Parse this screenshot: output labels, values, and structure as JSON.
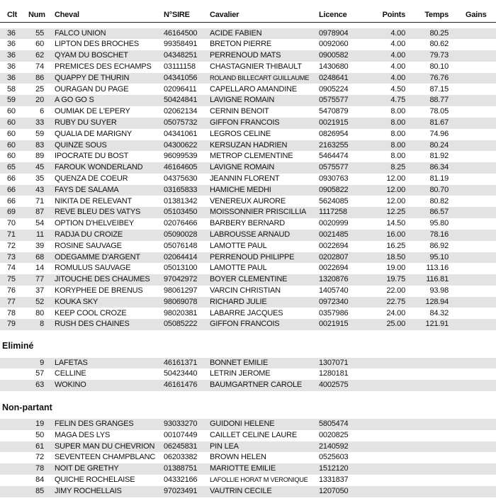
{
  "headers": {
    "clt": "Clt",
    "num": "Num",
    "cheval": "Cheval",
    "sire": "N°SIRE",
    "cavalier": "Cavalier",
    "licence": "Licence",
    "points": "Points",
    "temps": "Temps",
    "gains": "Gains"
  },
  "results": [
    [
      "36",
      "55",
      "FALCO UNION",
      "46164500",
      "ACIDE FABIEN",
      "0978904",
      "4.00",
      "80.25"
    ],
    [
      "36",
      "60",
      "LIPTON DES BROCHES",
      "99358491",
      "BRETON PIERRE",
      "0092060",
      "4.00",
      "80.62"
    ],
    [
      "36",
      "62",
      "QYAM DU BOSCHET",
      "04348251",
      "PERRENOUD MATS",
      "0900582",
      "4.00",
      "79.73"
    ],
    [
      "36",
      "74",
      "PREMICES DES ECHAMPS",
      "03111158",
      "CHASTAGNIER THIBAULT",
      "1430680",
      "4.00",
      "80.10"
    ],
    [
      "36",
      "86",
      "QUAPPY DE THURIN",
      "04341056",
      "ROLAND BILLECART GUILLAUME",
      "0248641",
      "4.00",
      "76.76"
    ],
    [
      "58",
      "25",
      "OURAGAN DU PAGE",
      "02096411",
      "CAPELLARO AMANDINE",
      "0905224",
      "4.50",
      "87.15"
    ],
    [
      "59",
      "20",
      "A GO GO S",
      "50424841",
      "LAVIGNE ROMAIN",
      "0575577",
      "4.75",
      "88.77"
    ],
    [
      "60",
      "6",
      "OUMIAK DE L'EPERY",
      "02062134",
      "CERNIN BENOIT",
      "5470879",
      "8.00",
      "78.05"
    ],
    [
      "60",
      "33",
      "RUBY DU SUYER",
      "05075732",
      "GIFFON FRANCOIS",
      "0021915",
      "8.00",
      "81.67"
    ],
    [
      "60",
      "59",
      "QUALIA DE MARIGNY",
      "04341061",
      "LEGROS CELINE",
      "0826954",
      "8.00",
      "74.96"
    ],
    [
      "60",
      "83",
      "QUINZE SOUS",
      "04300622",
      "KERSUZAN HADRIEN",
      "2163255",
      "8.00",
      "80.24"
    ],
    [
      "60",
      "89",
      "IPOCRATE DU BOST",
      "96099539",
      "METROP CLEMENTINE",
      "5464474",
      "8.00",
      "81.92"
    ],
    [
      "65",
      "45",
      "FAROUK WONDERLAND",
      "46164605",
      "LAVIGNE ROMAIN",
      "0575577",
      "8.25",
      "86.34"
    ],
    [
      "66",
      "35",
      "QUENZA DE COEUR",
      "04375630",
      "JEANNIN FLORENT",
      "0930763",
      "12.00",
      "81.19"
    ],
    [
      "66",
      "43",
      "FAYS DE SALAMA",
      "03165833",
      "HAMICHE MEDHI",
      "0905822",
      "12.00",
      "80.70"
    ],
    [
      "66",
      "71",
      "NIKITA DE RELEVANT",
      "01381342",
      "VENEREUX AURORE",
      "5624085",
      "12.00",
      "80.82"
    ],
    [
      "69",
      "87",
      "REVE BLEU DES VATYS",
      "05103450",
      "MOISSONNIER PRISCILLIA",
      "1117258",
      "12.25",
      "86.57"
    ],
    [
      "70",
      "54",
      "OPTION D'HELVEIBEY",
      "02076466",
      "BARBERY BERNARD",
      "0020999",
      "14.50",
      "95.80"
    ],
    [
      "71",
      "11",
      "RADJA DU CROIZE",
      "05090028",
      "LABROUSSE ARNAUD",
      "0021485",
      "16.00",
      "78.16"
    ],
    [
      "72",
      "39",
      "ROSINE SAUVAGE",
      "05076148",
      "LAMOTTE PAUL",
      "0022694",
      "16.25",
      "86.92"
    ],
    [
      "73",
      "68",
      "ODEGAMME D'ARGENT",
      "02064414",
      "PERRENOUD PHILIPPE",
      "0202807",
      "18.50",
      "95.10"
    ],
    [
      "74",
      "14",
      "ROMULUS SAUVAGE",
      "05013100",
      "LAMOTTE PAUL",
      "0022694",
      "19.00",
      "113.16"
    ],
    [
      "75",
      "77",
      "JITOUCHE DES CHAUMES",
      "97042972",
      "BOYER CLEMENTINE",
      "1320876",
      "19.75",
      "116.81"
    ],
    [
      "76",
      "37",
      "KORYPHEE DE BRENUS",
      "98061297",
      "VARCIN CHRISTIAN",
      "1405740",
      "22.00",
      "93.98"
    ],
    [
      "77",
      "52",
      "KOUKA SKY",
      "98069078",
      "RICHARD JULIE",
      "0972340",
      "22.75",
      "128.94"
    ],
    [
      "78",
      "80",
      "KEEP COOL CROZE",
      "98020381",
      "LABARRE JACQUES",
      "0357986",
      "24.00",
      "84.32"
    ],
    [
      "79",
      "8",
      "RUSH DES CHAINES",
      "05085222",
      "GIFFON FRANCOIS",
      "0021915",
      "25.00",
      "121.91"
    ]
  ],
  "elimine": {
    "title": "Eliminé",
    "rows": [
      [
        "",
        "9",
        "LAFETAS",
        "46161371",
        "BONNET EMILIE",
        "1307071",
        "",
        ""
      ],
      [
        "",
        "57",
        "CELLINE",
        "50423440",
        "LETRIN JEROME",
        "1280181",
        "",
        ""
      ],
      [
        "",
        "63",
        "WOKINO",
        "46161476",
        "BAUMGARTNER CAROLE",
        "4002575",
        "",
        ""
      ]
    ]
  },
  "non_partant": {
    "title": "Non-partant",
    "rows": [
      [
        "",
        "19",
        "FELIN DES GRANGES",
        "93033270",
        "GUIDONI HELENE",
        "5805474",
        "",
        ""
      ],
      [
        "",
        "50",
        "MAGA DES LYS",
        "00107449",
        "CAILLET CELINE LAURE",
        "0020825",
        "",
        ""
      ],
      [
        "",
        "61",
        "SUPER MAN DU CHEVRION",
        "06245831",
        "PIN LEA",
        "2140592",
        "",
        ""
      ],
      [
        "",
        "72",
        "SEVENTEEN CHAMPBLANC",
        "06203382",
        "BROWN HELEN",
        "0525603",
        "",
        ""
      ],
      [
        "",
        "78",
        "NOIT DE GRETHY",
        "01388751",
        "MARIOTTE EMILIE",
        "1512120",
        "",
        ""
      ],
      [
        "",
        "84",
        "QUICHE ROCHELAISE",
        "04332166",
        "LAFOLLIE HORAT M VERONIQUE",
        "1331837",
        "",
        ""
      ],
      [
        "",
        "85",
        "JIMY ROCHELLAIS",
        "97023491",
        "VAUTRIN CECILE",
        "1207050",
        "",
        ""
      ]
    ]
  },
  "colors": {
    "row_alt": "#e3e3e3",
    "text": "#111111"
  }
}
